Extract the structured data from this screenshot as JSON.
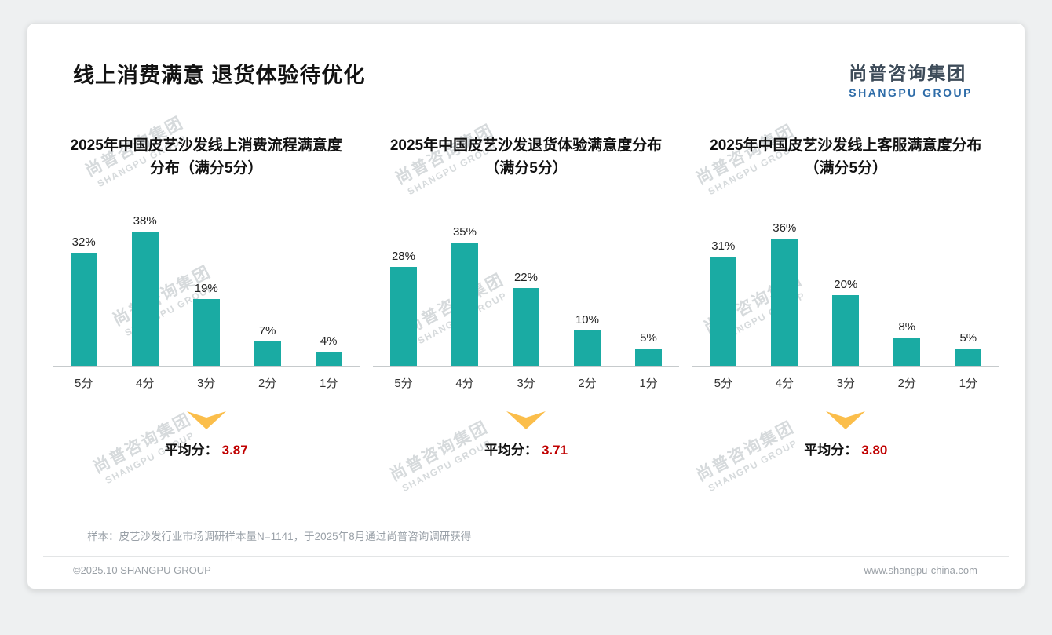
{
  "header": {
    "title": "线上消费满意 退货体验待优化"
  },
  "brand": {
    "cn": "尚普咨询集团",
    "en": "SHANGPU GROUP"
  },
  "colors": {
    "bar": "#1aaba3",
    "avg_value": "#c00000",
    "arrow": "#fbbe4b",
    "logo_blue": "#2e6ca8",
    "watermark": "#d6dadc"
  },
  "chart_data": [
    {
      "type": "bar",
      "title": "2025年中国皮艺沙发线上消费流程满意度分布（满分5分）",
      "categories": [
        "5分",
        "4分",
        "3分",
        "2分",
        "1分"
      ],
      "values": [
        32,
        38,
        19,
        7,
        4
      ],
      "value_suffix": "%",
      "ylim": [
        0,
        40
      ],
      "grid": false,
      "avg_label": "平均分：",
      "avg": "3.87"
    },
    {
      "type": "bar",
      "title": "2025年中国皮艺沙发退货体验满意度分布（满分5分）",
      "categories": [
        "5分",
        "4分",
        "3分",
        "2分",
        "1分"
      ],
      "values": [
        28,
        35,
        22,
        10,
        5
      ],
      "value_suffix": "%",
      "ylim": [
        0,
        40
      ],
      "grid": false,
      "avg_label": "平均分：",
      "avg": "3.71"
    },
    {
      "type": "bar",
      "title": "2025年中国皮艺沙发线上客服满意度分布（满分5分）",
      "categories": [
        "5分",
        "4分",
        "3分",
        "2分",
        "1分"
      ],
      "values": [
        31,
        36,
        20,
        8,
        5
      ],
      "value_suffix": "%",
      "ylim": [
        0,
        40
      ],
      "grid": false,
      "avg_label": "平均分：",
      "avg": "3.80"
    }
  ],
  "footer": {
    "note": "样本：皮艺沙发行业市场调研样本量N=1141，于2025年8月通过尚普咨询调研获得",
    "copyright": "©2025.10 SHANGPU GROUP",
    "website": "www.shangpu-china.com"
  }
}
